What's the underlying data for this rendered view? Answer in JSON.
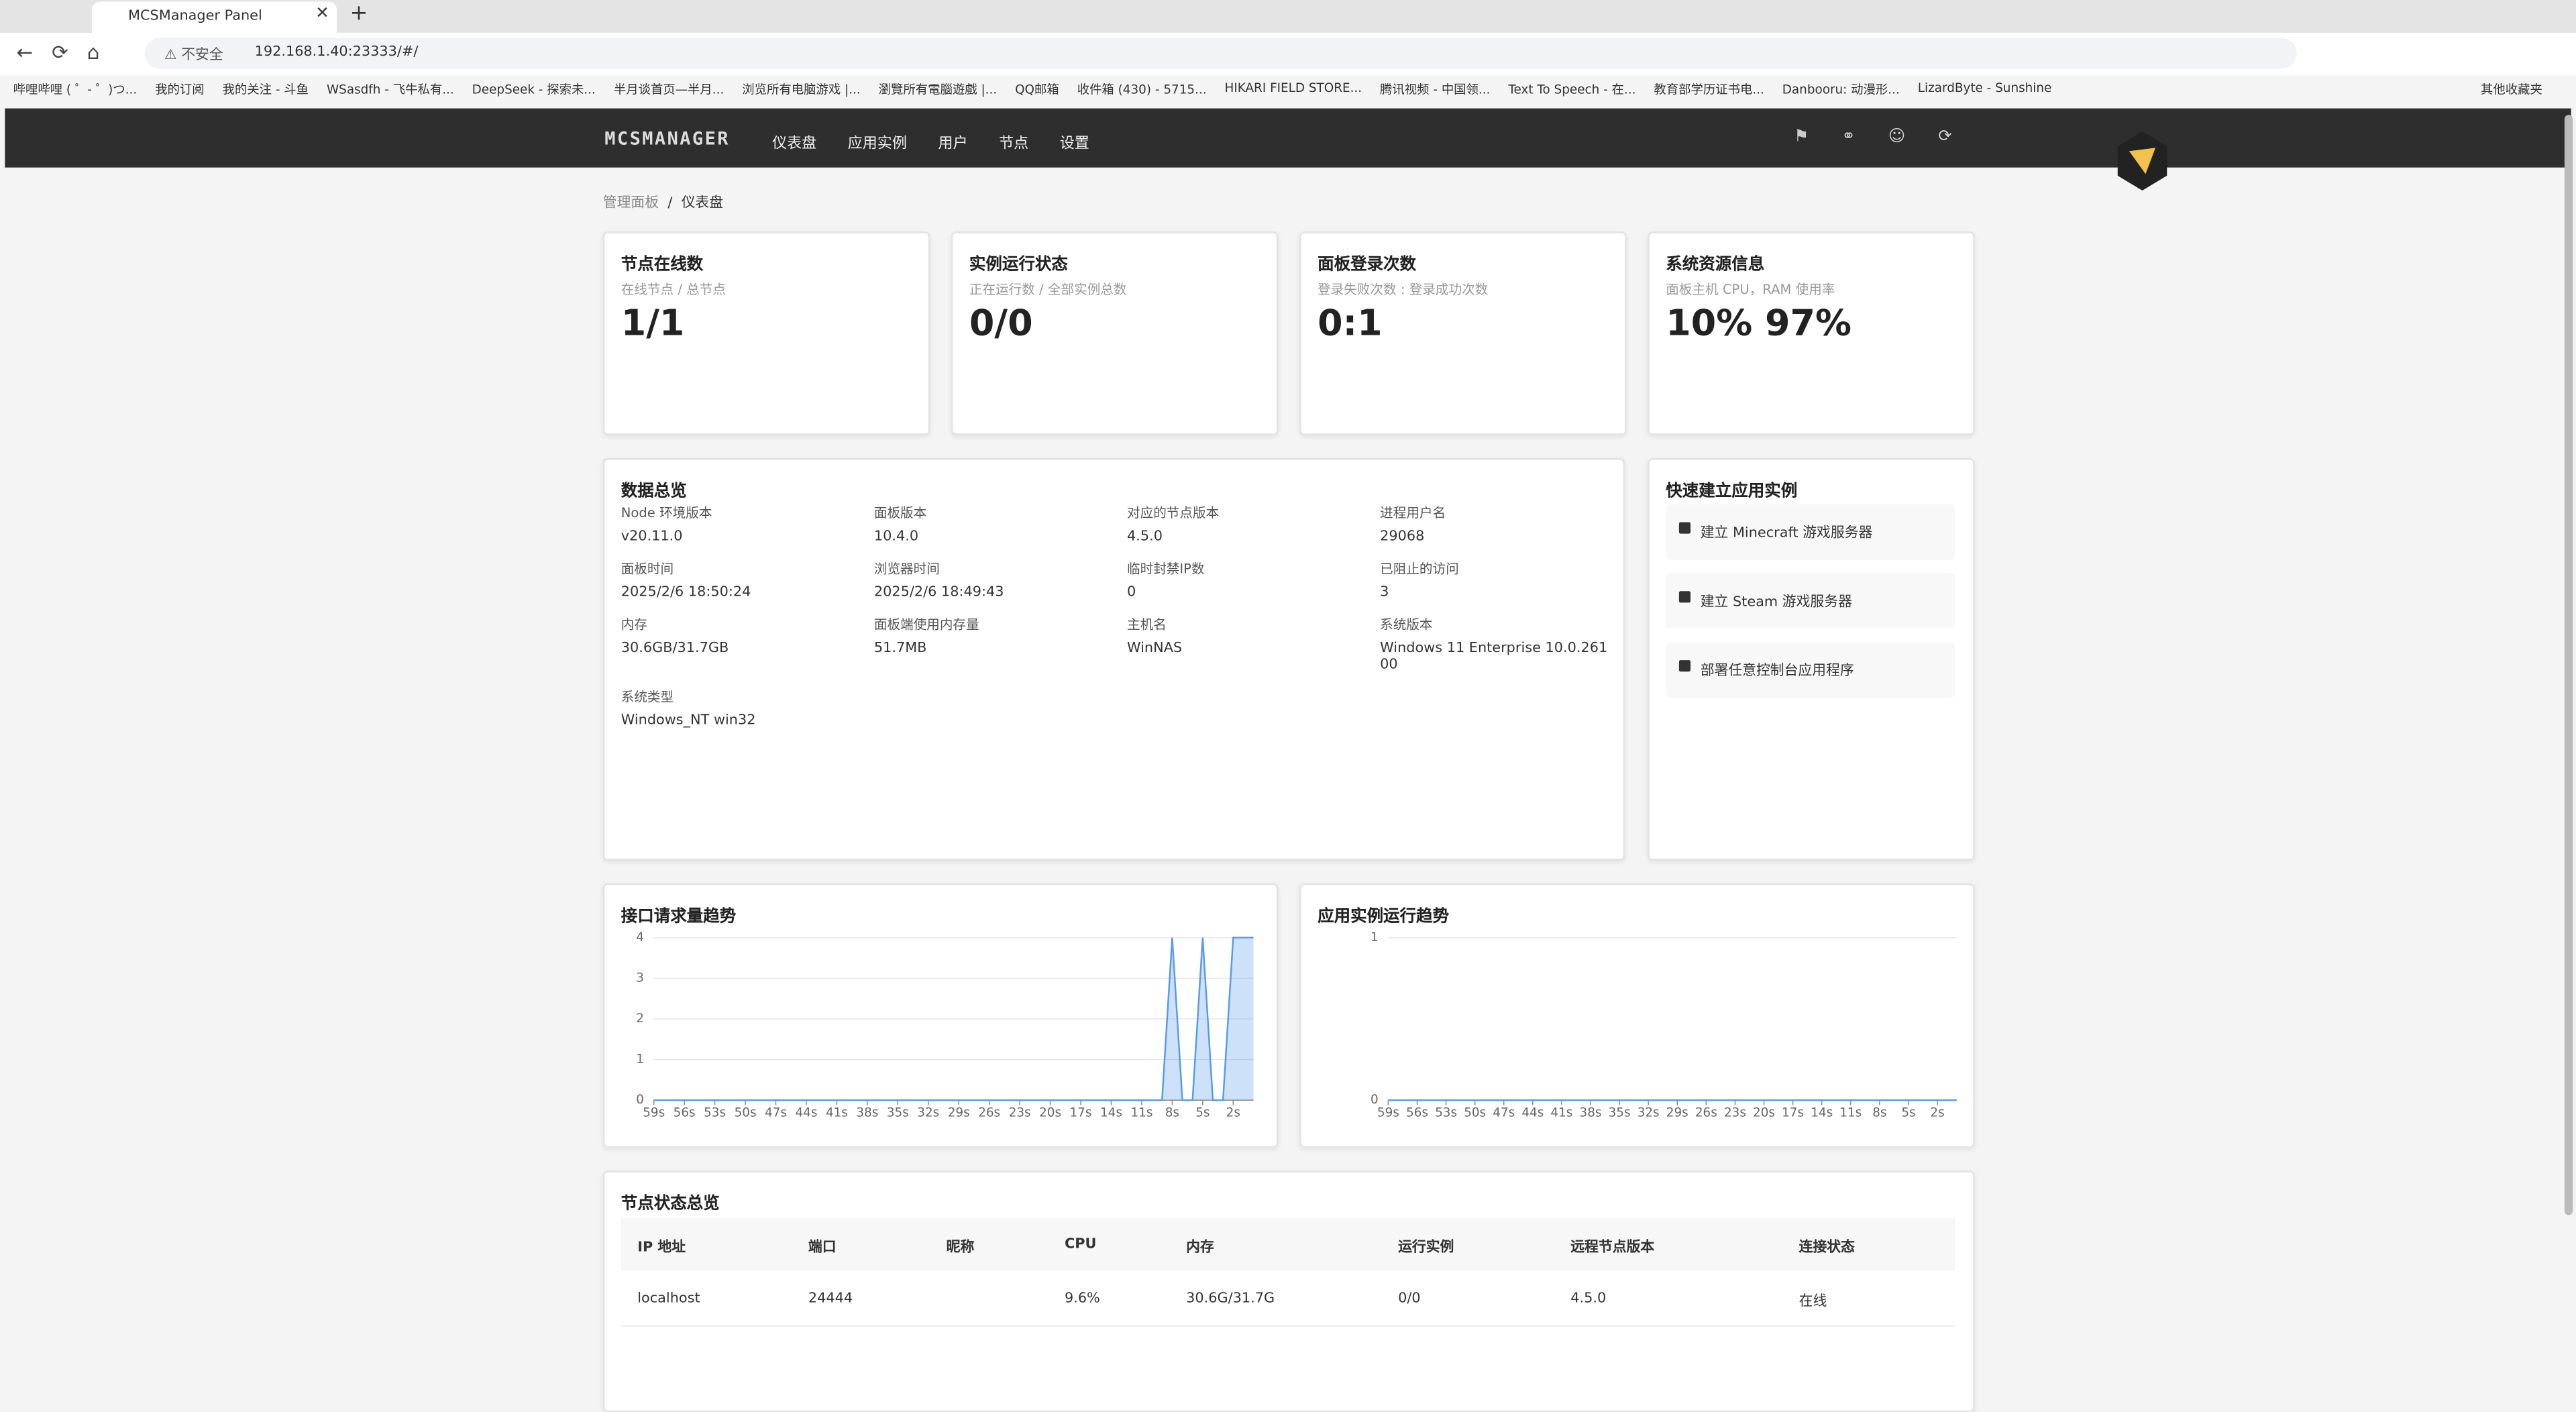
{
  "browser": {
    "tab": "MCSManager Panel",
    "security": "不安全",
    "url": "192.168.1.40:23333/#/",
    "bookmarks": [
      "哔哩哔哩 ( ゜- ゜)つ...",
      "我的订阅",
      "我的关注 - 斗鱼",
      "WSasdfh - 飞牛私有...",
      "DeepSeek - 探索未...",
      "半月谈首页—半月...",
      "浏览所有电脑游戏 |...",
      "瀏覽所有電腦遊戲 |...",
      "QQ邮箱",
      "收件箱 (430) - 5715...",
      "HIKARI FIELD STORE...",
      "腾讯视频 - 中国领...",
      "Text To Speech - 在...",
      "教育部学历证书电...",
      "Danbooru: 动漫形...",
      "LizardByte - Sunshine"
    ],
    "other": "其他收藏夹"
  },
  "nav": {
    "logo": "MCSMANAGER",
    "items": [
      "仪表盘",
      "应用实例",
      "用户",
      "节点",
      "设置"
    ]
  },
  "breadcrumb": [
    "管理面板",
    "仪表盘"
  ],
  "stats": [
    {
      "title": "节点在线数",
      "subtitle": "在线节点 / 总节点",
      "value": "1/1"
    },
    {
      "title": "实例运行状态",
      "subtitle": "正在运行数 / 全部实例总数",
      "value": "0/0"
    },
    {
      "title": "面板登录次数",
      "subtitle": "登录失败次数 : 登录成功次数",
      "value": "0:1"
    },
    {
      "title": "系统资源信息",
      "subtitle": "面板主机 CPU，RAM 使用率",
      "value": "10% 97%"
    }
  ],
  "overview": {
    "title": "数据总览",
    "items": [
      {
        "label": "Node 环境版本",
        "value": "v20.11.0"
      },
      {
        "label": "面板版本",
        "value": "10.4.0"
      },
      {
        "label": "对应的节点版本",
        "value": "4.5.0"
      },
      {
        "label": "进程用户名",
        "value": "29068"
      },
      {
        "label": "面板时间",
        "value": "2025/2/6 18:50:24"
      },
      {
        "label": "浏览器时间",
        "value": "2025/2/6 18:49:43"
      },
      {
        "label": "临时封禁IP数",
        "value": "0"
      },
      {
        "label": "已阻止的访问",
        "value": "3"
      },
      {
        "label": "内存",
        "value": "30.6GB/31.7GB"
      },
      {
        "label": "面板端使用内存量",
        "value": "51.7MB"
      },
      {
        "label": "主机名",
        "value": "WinNAS"
      },
      {
        "label": "系统版本",
        "value": "Windows 11 Enterprise 10.0.26100"
      },
      {
        "label": "系统类型",
        "value": "Windows_NT win32"
      }
    ]
  },
  "quick": {
    "title": "快速建立应用实例",
    "items": [
      "建立 Minecraft 游戏服务器",
      "建立 Steam 游戏服务器",
      "部署任意控制台应用程序"
    ]
  },
  "chart_data": [
    {
      "type": "line",
      "title": "接口请求量趋势",
      "categories": [
        "59s",
        null,
        null,
        "56s",
        null,
        null,
        "53s",
        null,
        null,
        "50s",
        null,
        null,
        "47s",
        null,
        null,
        "44s",
        null,
        null,
        "41s",
        null,
        null,
        "38s",
        null,
        null,
        "35s",
        null,
        null,
        "32s",
        null,
        null,
        "29s",
        null,
        null,
        "26s",
        null,
        null,
        "23s",
        null,
        null,
        "20s",
        null,
        null,
        "17s",
        null,
        null,
        "14s",
        null,
        null,
        "11s",
        null,
        null,
        "8s",
        null,
        null,
        "5s",
        null,
        null,
        "2s",
        null,
        null
      ],
      "series": [
        {
          "color": "#5a9ae8",
          "values": [
            0,
            0,
            0,
            0,
            0,
            0,
            0,
            0,
            0,
            0,
            0,
            0,
            0,
            0,
            0,
            0,
            0,
            0,
            0,
            0,
            0,
            0,
            0,
            0,
            0,
            0,
            0,
            0,
            0,
            0,
            0,
            0,
            0,
            0,
            0,
            0,
            0,
            0,
            0,
            0,
            0,
            0,
            0,
            0,
            0,
            0,
            0,
            0,
            0,
            0,
            0,
            4,
            0,
            0,
            4,
            0,
            0,
            4,
            4,
            4
          ]
        }
      ],
      "ylim": [
        0,
        4
      ],
      "yticks": [
        0,
        1,
        2,
        3,
        4
      ],
      "grid": true
    },
    {
      "type": "line",
      "title": "应用实例运行趋势",
      "categories": [
        "59s",
        null,
        null,
        "56s",
        null,
        null,
        "53s",
        null,
        null,
        "50s",
        null,
        null,
        "47s",
        null,
        null,
        "44s",
        null,
        null,
        "41s",
        null,
        null,
        "38s",
        null,
        null,
        "35s",
        null,
        null,
        "32s",
        null,
        null,
        "29s",
        null,
        null,
        "26s",
        null,
        null,
        "23s",
        null,
        null,
        "20s",
        null,
        null,
        "17s",
        null,
        null,
        "14s",
        null,
        null,
        "11s",
        null,
        null,
        "8s",
        null,
        null,
        "5s",
        null,
        null,
        "2s",
        null,
        null
      ],
      "series": [
        {
          "color": "#5a9ae8",
          "values": [
            0,
            0,
            0,
            0,
            0,
            0,
            0,
            0,
            0,
            0,
            0,
            0,
            0,
            0,
            0,
            0,
            0,
            0,
            0,
            0,
            0,
            0,
            0,
            0,
            0,
            0,
            0,
            0,
            0,
            0,
            0,
            0,
            0,
            0,
            0,
            0,
            0,
            0,
            0,
            0,
            0,
            0,
            0,
            0,
            0,
            0,
            0,
            0,
            0,
            0,
            0,
            0,
            0,
            0,
            0,
            0,
            0,
            0,
            0,
            0
          ]
        }
      ],
      "ylim": [
        0,
        1
      ],
      "yticks": [
        0,
        1
      ],
      "grid": true
    }
  ],
  "table": {
    "title": "节点状态总览",
    "headers": [
      "IP 地址",
      "端口",
      "昵称",
      "CPU",
      "内存",
      "运行实例",
      "远程节点版本",
      "连接状态"
    ],
    "rows": [
      [
        "localhost",
        "24444",
        "",
        "9.6%",
        "30.6G/31.7G",
        "0/0",
        "4.5.0",
        "在线"
      ]
    ]
  }
}
